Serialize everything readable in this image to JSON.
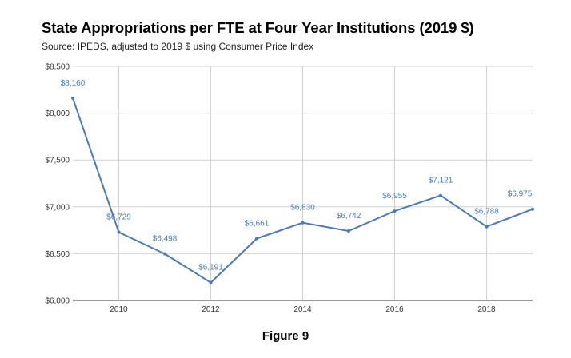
{
  "chart_data": {
    "type": "line",
    "title": "State Appropriations per FTE at Four Year Institutions (2019 $)",
    "subtitle": "Source:  IPEDS, adjusted to 2019 $ using Consumer Price Index",
    "caption": "Figure 9",
    "x": [
      2009,
      2010,
      2011,
      2012,
      2013,
      2014,
      2015,
      2016,
      2017,
      2018,
      2019
    ],
    "values": [
      8160,
      6729,
      6498,
      6191,
      6661,
      6830,
      6742,
      6955,
      7121,
      6788,
      6975
    ],
    "data_labels": [
      "$8,160",
      "$6,729",
      "$6,498",
      "$6,191",
      "$6,661",
      "$6,830",
      "$6,742",
      "$6,955",
      "$7,121",
      "$6,788",
      "$6,975"
    ],
    "xticks": [
      2010,
      2012,
      2014,
      2016,
      2018
    ],
    "xtick_labels": [
      "2010",
      "2012",
      "2014",
      "2016",
      "2018"
    ],
    "yticks": [
      6000,
      6500,
      7000,
      7500,
      8000,
      8500
    ],
    "ytick_labels": [
      "$6,000",
      "$6,500",
      "$7,000",
      "$7,500",
      "$8,000",
      "$8,500"
    ],
    "xlim": [
      2009,
      2019
    ],
    "ylim": [
      6000,
      8500
    ],
    "grid": true,
    "line_color": "#4a7ab8"
  }
}
